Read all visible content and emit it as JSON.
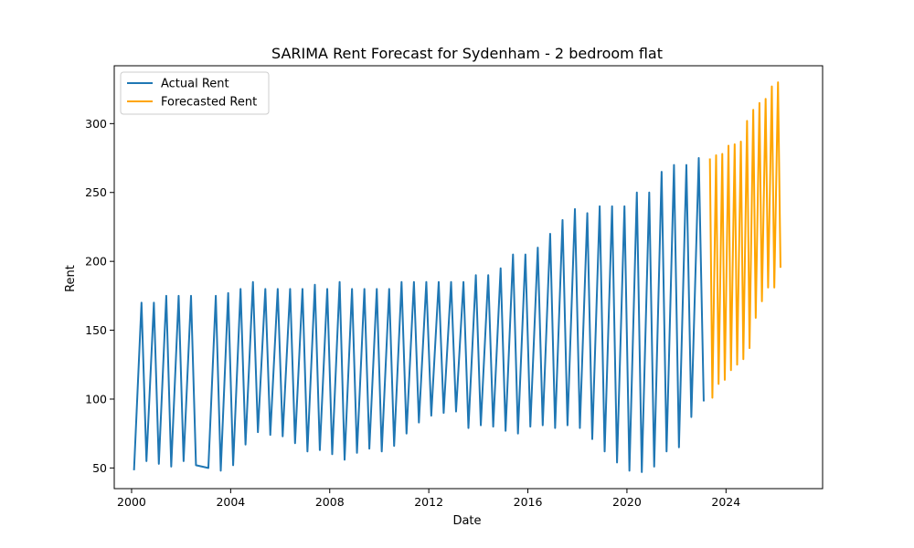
{
  "chart_data": {
    "type": "line",
    "title": "SARIMA Rent Forecast for Sydenham - 2 bedroom flat",
    "xlabel": "Date",
    "ylabel": "Rent",
    "xlim": [
      1999.3,
      2027.9
    ],
    "ylim": [
      35,
      342
    ],
    "x_ticks": [
      2000,
      2004,
      2008,
      2012,
      2016,
      2020,
      2024
    ],
    "x_tick_labels": [
      "2000",
      "2004",
      "2008",
      "2012",
      "2016",
      "2020",
      "2024"
    ],
    "y_ticks": [
      50,
      100,
      150,
      200,
      250,
      300
    ],
    "y_tick_labels": [
      "50",
      "100",
      "150",
      "200",
      "250",
      "300"
    ],
    "grid": false,
    "legend_position": "upper-left",
    "series": [
      {
        "name": "Actual Rent",
        "color": "#1f77b4",
        "x": [
          2000.1,
          2000.4,
          2000.6,
          2000.9,
          2001.1,
          2001.4,
          2001.6,
          2001.9,
          2002.1,
          2002.4,
          2002.6,
          2003.1,
          2003.4,
          2003.6,
          2003.9,
          2004.1,
          2004.4,
          2004.6,
          2004.9,
          2005.1,
          2005.4,
          2005.6,
          2005.9,
          2006.1,
          2006.4,
          2006.6,
          2006.9,
          2007.1,
          2007.4,
          2007.6,
          2007.9,
          2008.1,
          2008.4,
          2008.6,
          2008.9,
          2009.1,
          2009.4,
          2009.6,
          2009.9,
          2010.1,
          2010.4,
          2010.6,
          2010.9,
          2011.1,
          2011.4,
          2011.6,
          2011.9,
          2012.1,
          2012.4,
          2012.6,
          2012.9,
          2013.1,
          2013.4,
          2013.6,
          2013.9,
          2014.1,
          2014.4,
          2014.6,
          2014.9,
          2015.1,
          2015.4,
          2015.6,
          2015.9,
          2016.1,
          2016.4,
          2016.6,
          2016.9,
          2017.1,
          2017.4,
          2017.6,
          2017.9,
          2018.1,
          2018.4,
          2018.6,
          2018.9,
          2019.1,
          2019.4,
          2019.6,
          2019.9,
          2020.1,
          2020.4,
          2020.6,
          2020.9,
          2021.1,
          2021.4,
          2021.6,
          2021.9,
          2022.1,
          2022.4,
          2022.6,
          2022.9,
          2023.1
        ],
        "y": [
          49,
          170,
          55,
          170,
          53,
          175,
          51,
          175,
          55,
          175,
          52,
          50,
          175,
          48,
          177,
          52,
          180,
          67,
          185,
          76,
          180,
          74,
          180,
          73,
          180,
          68,
          180,
          62,
          183,
          63,
          180,
          60,
          185,
          56,
          180,
          61,
          180,
          64,
          180,
          62,
          180,
          66,
          185,
          75,
          185,
          83,
          185,
          88,
          185,
          90,
          185,
          91,
          185,
          79,
          190,
          81,
          190,
          80,
          195,
          77,
          205,
          75,
          205,
          80,
          210,
          81,
          220,
          79,
          230,
          81,
          238,
          79,
          235,
          71,
          240,
          62,
          240,
          54,
          240,
          48,
          250,
          47,
          250,
          51,
          265,
          62,
          270,
          65,
          270,
          87,
          275,
          99
        ]
      },
      {
        "name": "Forecasted Rent",
        "color": "#ffa500",
        "x": [
          2023.35,
          2023.45,
          2023.6,
          2023.7,
          2023.85,
          2023.95,
          2024.1,
          2024.2,
          2024.35,
          2024.45,
          2024.6,
          2024.7,
          2024.85,
          2024.95,
          2025.1,
          2025.2,
          2025.35,
          2025.45,
          2025.6,
          2025.7,
          2025.85,
          2025.95,
          2026.1,
          2026.2
        ],
        "y": [
          274,
          101,
          277,
          111,
          278,
          114,
          284,
          121,
          285,
          125,
          287,
          129,
          302,
          137,
          310,
          159,
          315,
          171,
          318,
          181,
          327,
          181,
          330,
          196
        ]
      }
    ]
  }
}
